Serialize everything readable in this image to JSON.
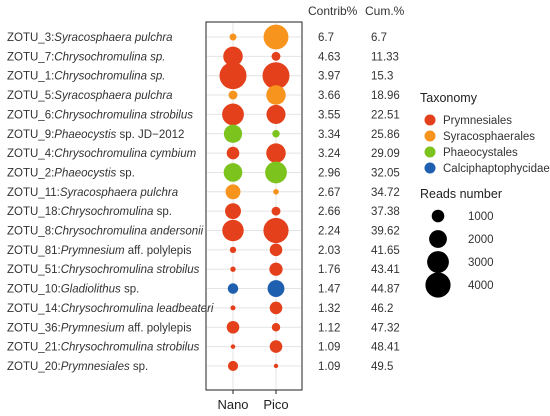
{
  "chart_data": {
    "type": "bubble",
    "x": [
      "Nano",
      "Pico"
    ],
    "headers": {
      "contrib": "Contrib%",
      "cum": "Cum.%"
    },
    "rows": [
      {
        "prefix": "ZOTU_3:",
        "taxon": "Syracosphaera pulchra",
        "suffix": "",
        "group": "Syracosphaerales",
        "nano": 300,
        "pico": 3900,
        "contrib": "6.7",
        "cum": "6.7"
      },
      {
        "prefix": "ZOTU_7:",
        "taxon": "Chrysochromulina sp.",
        "suffix": "",
        "group": "Prymnesiales",
        "nano": 2400,
        "pico": 500,
        "contrib": "4.63",
        "cum": "11.33"
      },
      {
        "prefix": "ZOTU_1:",
        "taxon": "Chrysochromulina sp.",
        "suffix": "",
        "group": "Prymnesiales",
        "nano": 4600,
        "pico": 4600,
        "contrib": "3.97",
        "cum": "15.3"
      },
      {
        "prefix": "ZOTU_5:",
        "taxon": "Syracosphaera pulchra",
        "suffix": "",
        "group": "Syracosphaerales",
        "nano": 500,
        "pico": 2400,
        "contrib": "3.66",
        "cum": "18.96"
      },
      {
        "prefix": "ZOTU_6:",
        "taxon": "Chrysochromulina strobilus",
        "suffix": "",
        "group": "Prymnesiales",
        "nano": 3000,
        "pico": 2300,
        "contrib": "3.55",
        "cum": "22.51"
      },
      {
        "prefix": "ZOTU_9:",
        "taxon": "Phaeocystis",
        "suffix": " sp. JD−2012",
        "group": "Phaeocystales",
        "nano": 2100,
        "pico": 350,
        "contrib": "3.34",
        "cum": "25.86"
      },
      {
        "prefix": "ZOTU_4:",
        "taxon": "Chrysochromulina cymbium",
        "suffix": "",
        "group": "Prymnesiales",
        "nano": 1000,
        "pico": 2400,
        "contrib": "3.24",
        "cum": "29.09"
      },
      {
        "prefix": "ZOTU_2:",
        "taxon": "Phaeocystis",
        "suffix": " sp.",
        "group": "Phaeocystales",
        "nano": 2200,
        "pico": 3000,
        "contrib": "2.96",
        "cum": "32.05"
      },
      {
        "prefix": "ZOTU_11:",
        "taxon": "Syracosphaera pulchra",
        "suffix": "",
        "group": "Syracosphaerales",
        "nano": 1400,
        "pico": 200,
        "contrib": "2.67",
        "cum": "34.72"
      },
      {
        "prefix": "ZOTU_18:",
        "taxon": "Chrysochromulina",
        "suffix": " sp.",
        "group": "Prymnesiales",
        "nano": 1600,
        "pico": 500,
        "contrib": "2.66",
        "cum": "37.38"
      },
      {
        "prefix": "ZOTU_8:",
        "taxon": "Chrysochromulina andersonii",
        "suffix": "",
        "group": "Prymnesiales",
        "nano": 2900,
        "pico": 4000,
        "contrib": "2.24",
        "cum": "39.62"
      },
      {
        "prefix": "ZOTU_81:",
        "taxon": "Prymnesium",
        "suffix": " aff. polylepis",
        "group": "Prymnesiales",
        "nano": 250,
        "pico": 1000,
        "contrib": "2.03",
        "cum": "41.65"
      },
      {
        "prefix": "ZOTU_51:",
        "taxon": "Chrysochromulina strobilus",
        "suffix": "",
        "group": "Prymnesiales",
        "nano": 180,
        "pico": 1100,
        "contrib": "1.76",
        "cum": "43.41"
      },
      {
        "prefix": "ZOTU_10:",
        "taxon": "Gladiolithus",
        "suffix": " sp.",
        "group": "Calcihaptophycidae",
        "nano": 700,
        "pico": 1800,
        "contrib": "1.47",
        "cum": "44.87"
      },
      {
        "prefix": "ZOTU_14:",
        "taxon": "Chrysochromulina leadbeateri",
        "suffix": "",
        "group": "Prymnesiales",
        "nano": 160,
        "pico": 1000,
        "contrib": "1.32",
        "cum": "46.2"
      },
      {
        "prefix": "ZOTU_36:",
        "taxon": "Prymnesium",
        "suffix": " aff. polylepis",
        "group": "Prymnesiales",
        "nano": 1000,
        "pico": 450,
        "contrib": "1.12",
        "cum": "47.32"
      },
      {
        "prefix": "ZOTU_21:",
        "taxon": "Chrysochromulina strobilus",
        "suffix": "",
        "group": "Prymnesiales",
        "nano": 130,
        "pico": 1000,
        "contrib": "1.09",
        "cum": "48.41"
      },
      {
        "prefix": "ZOTU_20:",
        "taxon": "Prymnesiales",
        "suffix": " sp.",
        "group": "Prymnesiales",
        "nano": 650,
        "pico": 120,
        "contrib": "1.09",
        "cum": "49.5"
      }
    ],
    "legend_color": {
      "title": "Taxonomy",
      "items": [
        {
          "label": "Prymnesiales",
          "color": "#e5401c"
        },
        {
          "label": "Syracosphaerales",
          "color": "#f7941d"
        },
        {
          "label": "Phaeocystales",
          "color": "#7dc31e"
        },
        {
          "label": "Calciphaptophycidae",
          "color": "#1f5fb0"
        }
      ]
    },
    "legend_size": {
      "title": "Reads number",
      "values": [
        1000,
        2000,
        3000,
        4000
      ]
    },
    "group_colors": {
      "Prymnesiales": "#e5401c",
      "Syracosphaerales": "#f7941d",
      "Phaeocystales": "#7dc31e",
      "Calciphaptophycidae": "#1f5fb0",
      "Calcihaptophycidae": "#1f5fb0"
    },
    "size_max": 4600,
    "grid": true
  }
}
